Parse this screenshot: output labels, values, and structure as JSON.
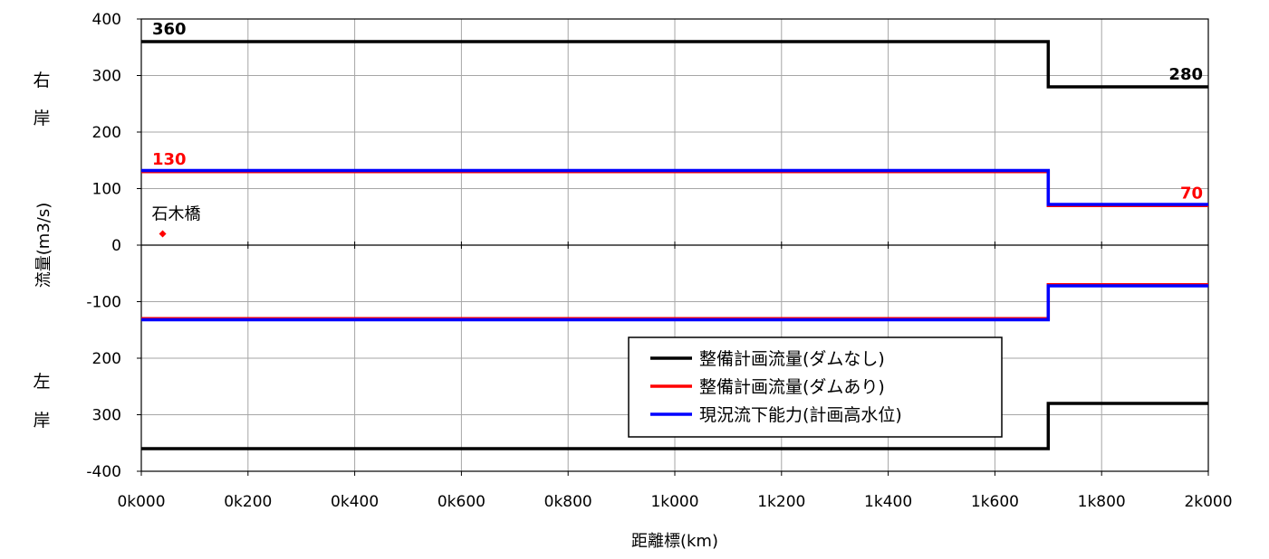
{
  "chart_data": {
    "type": "line",
    "xlabel": "距離標(km)",
    "ylabel": "流量(m3/s)",
    "side_labels": {
      "right_bank": [
        "右",
        "岸"
      ],
      "left_bank": [
        "左",
        "岸"
      ]
    },
    "x_ticks": [
      {
        "value": 0,
        "label": "0k000"
      },
      {
        "value": 200,
        "label": "0k200"
      },
      {
        "value": 400,
        "label": "0k400"
      },
      {
        "value": 600,
        "label": "0k600"
      },
      {
        "value": 800,
        "label": "0k800"
      },
      {
        "value": 1000,
        "label": "1k000"
      },
      {
        "value": 1200,
        "label": "1k200"
      },
      {
        "value": 1400,
        "label": "1k400"
      },
      {
        "value": 1600,
        "label": "1k600"
      },
      {
        "value": 1800,
        "label": "1k800"
      },
      {
        "value": 2000,
        "label": "2k000"
      }
    ],
    "y_ticks": [
      {
        "value": 400,
        "label": "400"
      },
      {
        "value": 300,
        "label": "300"
      },
      {
        "value": 200,
        "label": "200"
      },
      {
        "value": 100,
        "label": "100"
      },
      {
        "value": 0,
        "label": "0"
      },
      {
        "value": -100,
        "label": "-100"
      },
      {
        "value": -200,
        "label": "200"
      },
      {
        "value": -300,
        "label": "300"
      },
      {
        "value": -400,
        "label": "-400"
      }
    ],
    "xlim": [
      0,
      2000
    ],
    "ylim": [
      -400,
      400
    ],
    "grid": true,
    "legend_position": "lower-right",
    "series": [
      {
        "name": "整備計画流量(ダムなし)",
        "color": "#000000",
        "segment": "upper",
        "x": [
          0,
          1700,
          1700,
          2000
        ],
        "y": [
          360,
          360,
          280,
          280
        ]
      },
      {
        "name": "整備計画流量(ダムなし)",
        "color": "#000000",
        "segment": "lower",
        "x": [
          0,
          1700,
          1700,
          2000
        ],
        "y": [
          -360,
          -360,
          -280,
          -280
        ]
      },
      {
        "name": "整備計画流量(ダムあり)",
        "color": "#ff0000",
        "segment": "upper",
        "x": [
          0,
          1700,
          1700,
          2000
        ],
        "y": [
          130,
          130,
          70,
          70
        ]
      },
      {
        "name": "整備計画流量(ダムあり)",
        "color": "#ff0000",
        "segment": "lower",
        "x": [
          0,
          1700,
          1700,
          2000
        ],
        "y": [
          -130,
          -130,
          -70,
          -70
        ]
      },
      {
        "name": "現況流下能力(計画高水位)",
        "color": "#0000ff",
        "segment": "upper",
        "x": [
          0,
          1700,
          1700,
          2000
        ],
        "y": [
          132,
          132,
          72,
          72
        ]
      },
      {
        "name": "現況流下能力(計画高水位)",
        "color": "#0000ff",
        "segment": "lower",
        "x": [
          0,
          1700,
          1700,
          2000
        ],
        "y": [
          -132,
          -132,
          -72,
          -72
        ]
      }
    ],
    "legend": [
      {
        "label": "整備計画流量(ダムなし)",
        "color": "#000000"
      },
      {
        "label": "整備計画流量(ダムあり)",
        "color": "#ff0000"
      },
      {
        "label": "現況流下能力(計画高水位)",
        "color": "#0000ff"
      }
    ],
    "annotations": [
      {
        "text": "360",
        "color": "#000000",
        "x": 0,
        "y": 360,
        "anchor": "start"
      },
      {
        "text": "280",
        "color": "#000000",
        "x": 2000,
        "y": 280,
        "anchor": "end"
      },
      {
        "text": "130",
        "color": "#ff0000",
        "x": 0,
        "y": 130,
        "anchor": "start"
      },
      {
        "text": "70",
        "color": "#ff0000",
        "x": 2000,
        "y": 70,
        "anchor": "end"
      }
    ],
    "point_markers": [
      {
        "label": "石木橋",
        "x": 40,
        "y": 20,
        "color": "#ff0000"
      }
    ]
  }
}
